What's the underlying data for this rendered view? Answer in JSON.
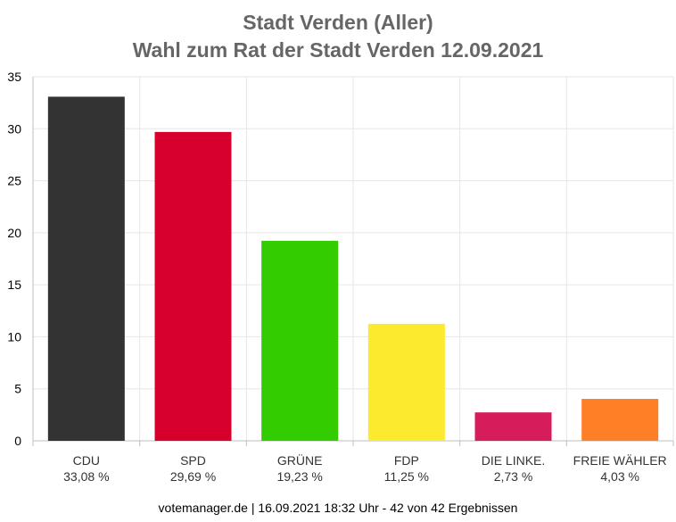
{
  "title_line1": "Stadt Verden (Aller)",
  "title_line2": "Wahl zum Rat der Stadt Verden 12.09.2021",
  "footer": "votemanager.de | 16.09.2021 18:32 Uhr - 42 von 42 Ergebnissen",
  "chart_data": {
    "type": "bar",
    "title": "Stadt Verden (Aller) — Wahl zum Rat der Stadt Verden 12.09.2021",
    "categories": [
      "CDU",
      "SPD",
      "GRÜNE",
      "FDP",
      "DIE LINKE.",
      "FREIE WÄHLER"
    ],
    "values": [
      33.08,
      29.69,
      19.23,
      11.25,
      2.73,
      4.03
    ],
    "value_labels": [
      "33,08 %",
      "29,69 %",
      "19,23 %",
      "11,25 %",
      "2,73 %",
      "4,03 %"
    ],
    "colors": [
      "#333333",
      "#d7002d",
      "#33cc00",
      "#fbea2e",
      "#d61c5a",
      "#ff7f27"
    ],
    "ylim": [
      0,
      35
    ],
    "yticks": [
      0,
      5,
      10,
      15,
      20,
      25,
      30,
      35
    ],
    "grid": true,
    "xlabel": "",
    "ylabel": ""
  }
}
